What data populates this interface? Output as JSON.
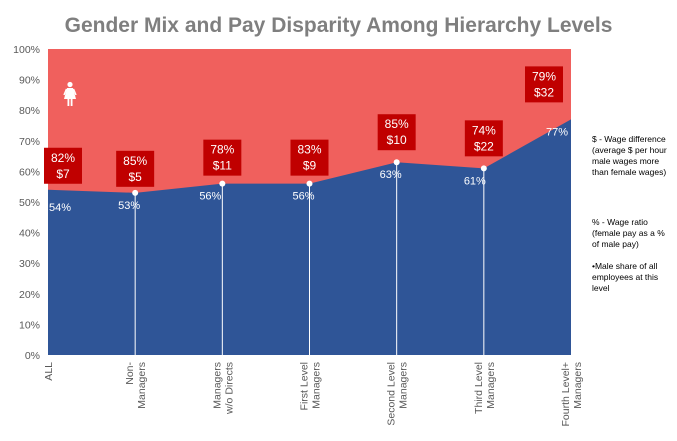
{
  "chart_data": {
    "type": "area",
    "title": "Gender Mix and Pay Disparity Among Hierarchy Levels",
    "categories": [
      "ALL",
      "Non-\nManagers",
      "Managers\nw/o Directs",
      "First Level\nManagers",
      "Second Level\nManagers",
      "Third Level\nManagers",
      "Fourth Level+\nManagers"
    ],
    "male_share_pct": [
      54,
      53,
      56,
      56,
      63,
      61,
      77
    ],
    "male_share_labels": [
      "54%",
      "53%",
      "56%",
      "56%",
      "63%",
      "61%",
      "77%"
    ],
    "wage_ratio_labels": [
      "82%",
      "85%",
      "78%",
      "83%",
      "85%",
      "74%",
      "79%"
    ],
    "wage_difference_labels": [
      "$7",
      "$5",
      "$11",
      "$9",
      "$10",
      "$22",
      "$32"
    ],
    "y_ticks": [
      "0%",
      "10%",
      "20%",
      "30%",
      "40%",
      "50%",
      "60%",
      "70%",
      "80%",
      "90%",
      "100%"
    ],
    "ylim": [
      0,
      100
    ],
    "colors": {
      "male": "#2f5597",
      "female": "#f0605d",
      "label_box": "#c00000",
      "title": "#7f7f7f"
    },
    "icon": "female-icon",
    "notes": [
      "$ - Wage difference (average $ per hour male wages more than female wages)",
      "% - Wage ratio (female pay as a % of male pay)",
      "•Male share of all employees at this level"
    ]
  }
}
